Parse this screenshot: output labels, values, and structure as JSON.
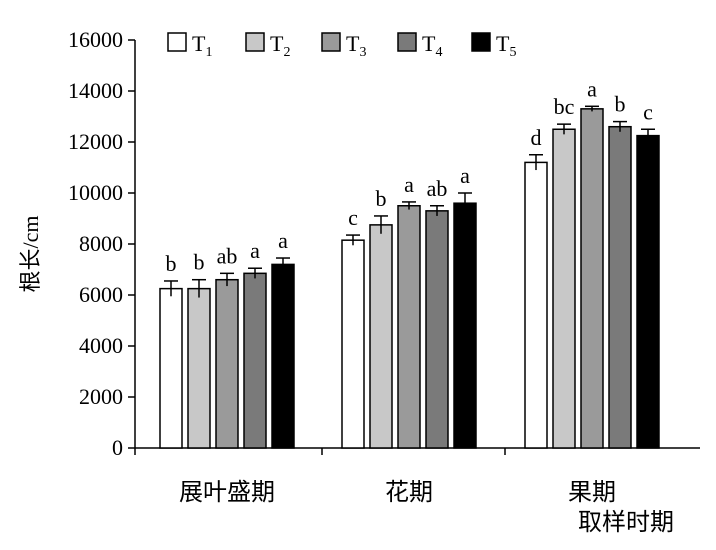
{
  "colors": {
    "T1": "#ffffff",
    "T2": "#c8c8c8",
    "T3": "#9a9a9a",
    "T4": "#7a7a7a",
    "T5": "#000000",
    "axis": "#000000"
  },
  "chart_data": {
    "type": "bar",
    "title": "",
    "xlabel": "取样时期",
    "ylabel": "根长/cm",
    "ylim": [
      0,
      16000
    ],
    "yticks": [
      "0",
      "2000",
      "4000",
      "6000",
      "8000",
      "10000",
      "12000",
      "14000",
      "16000"
    ],
    "grid": false,
    "legend_position": "top",
    "categories": [
      "展叶盛期",
      "花期",
      "果期"
    ],
    "series": [
      {
        "name": "T",
        "sub": "1",
        "values": [
          6250,
          8150,
          11200
        ],
        "errors": [
          300,
          200,
          300
        ],
        "letters": [
          "b",
          "c",
          "d"
        ]
      },
      {
        "name": "T",
        "sub": "2",
        "values": [
          6250,
          8750,
          12500
        ],
        "errors": [
          350,
          350,
          200
        ],
        "letters": [
          "b",
          "b",
          "bc"
        ]
      },
      {
        "name": "T",
        "sub": "3",
        "values": [
          6600,
          9500,
          13300
        ],
        "errors": [
          250,
          150,
          100
        ],
        "letters": [
          "ab",
          "a",
          "a"
        ]
      },
      {
        "name": "T",
        "sub": "4",
        "values": [
          6850,
          9300,
          12600
        ],
        "errors": [
          200,
          200,
          200
        ],
        "letters": [
          "a",
          "ab",
          "b"
        ]
      },
      {
        "name": "T",
        "sub": "5",
        "values": [
          7200,
          9600,
          12250
        ],
        "errors": [
          250,
          400,
          250
        ],
        "letters": [
          "a",
          "a",
          "c"
        ]
      }
    ]
  }
}
